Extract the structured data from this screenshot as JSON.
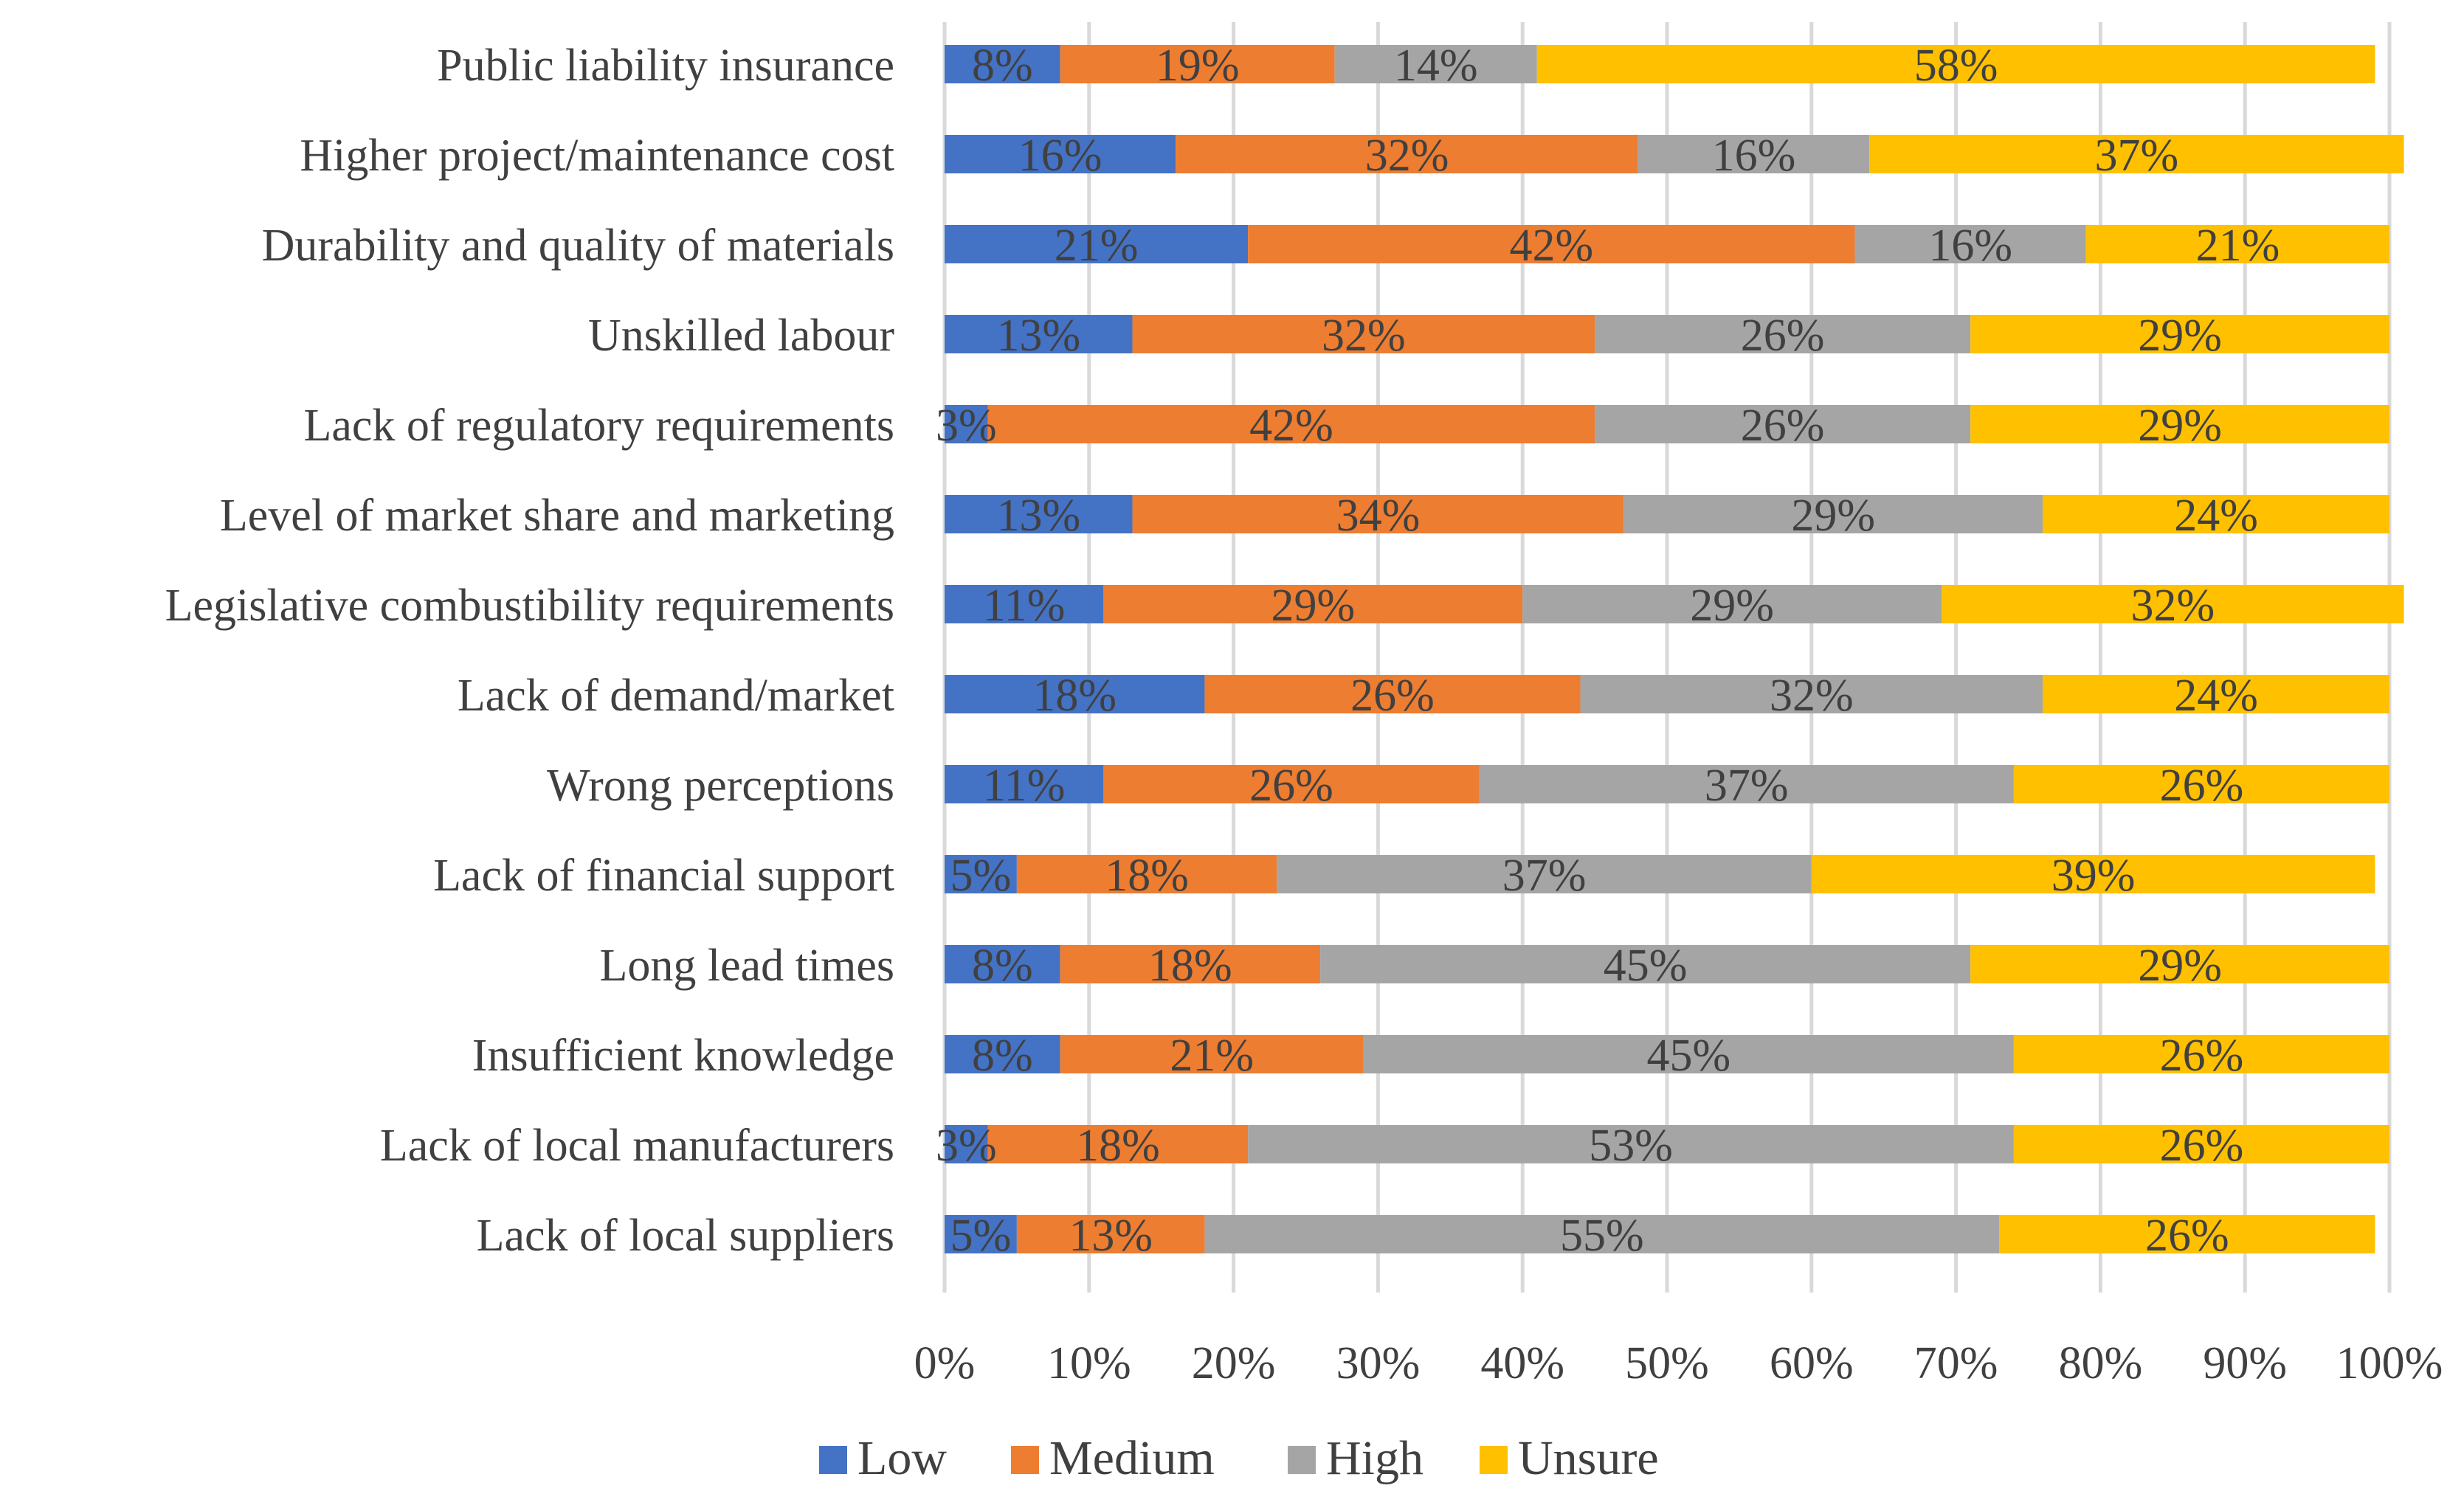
{
  "chart_data": {
    "type": "bar",
    "orientation": "horizontal",
    "stacked": "percent",
    "title": "",
    "xlabel": "",
    "ylabel": "",
    "xlim": [
      0,
      100
    ],
    "x_ticks": [
      "0%",
      "10%",
      "20%",
      "30%",
      "40%",
      "50%",
      "60%",
      "70%",
      "80%",
      "90%",
      "100%"
    ],
    "grid": "vertical",
    "legend_position": "bottom",
    "categories": [
      "Public liability insurance",
      "Higher project/maintenance cost",
      "Durability and quality of materials",
      "Unskilled labour",
      "Lack of regulatory requirements",
      "Level of market share and marketing",
      "Legislative combustibility requirements",
      "Lack of demand/market",
      "Wrong perceptions",
      "Lack of financial support",
      "Long lead times",
      "Insufficient knowledge",
      "Lack of local manufacturers",
      "Lack of local suppliers"
    ],
    "series": [
      {
        "name": "Low",
        "color": "#4472C4",
        "values": [
          8,
          16,
          21,
          13,
          3,
          13,
          11,
          18,
          11,
          5,
          8,
          8,
          3,
          5
        ],
        "labels": [
          "8%",
          "16%",
          "21%",
          "13%",
          "3%",
          "13%",
          "11%",
          "18%",
          "11%",
          "5%",
          "8%",
          "8%",
          "3%",
          "5%"
        ]
      },
      {
        "name": "Medium",
        "color": "#ED7D31",
        "values": [
          19,
          32,
          42,
          32,
          42,
          34,
          29,
          26,
          26,
          18,
          18,
          21,
          18,
          13
        ],
        "labels": [
          "19%",
          "32%",
          "42%",
          "32%",
          "42%",
          "34%",
          "29%",
          "26%",
          "26%",
          "18%",
          "18%",
          "21%",
          "18%",
          "13%"
        ]
      },
      {
        "name": "High",
        "color": "#A5A5A5",
        "values": [
          14,
          16,
          16,
          26,
          26,
          29,
          29,
          32,
          37,
          37,
          45,
          45,
          53,
          55
        ],
        "labels": [
          "14%",
          "16%",
          "16%",
          "26%",
          "26%",
          "29%",
          "29%",
          "32%",
          "37%",
          "37%",
          "45%",
          "45%",
          "53%",
          "55%"
        ]
      },
      {
        "name": "Unsure",
        "color": "#FFC000",
        "values": [
          58,
          37,
          21,
          29,
          29,
          24,
          32,
          24,
          26,
          39,
          29,
          26,
          26,
          26
        ],
        "labels": [
          "58%",
          "37%",
          "21%",
          "29%",
          "29%",
          "24%",
          "32%",
          "24%",
          "26%",
          "39%",
          "29%",
          "26%",
          "26%",
          "26%"
        ]
      }
    ]
  }
}
